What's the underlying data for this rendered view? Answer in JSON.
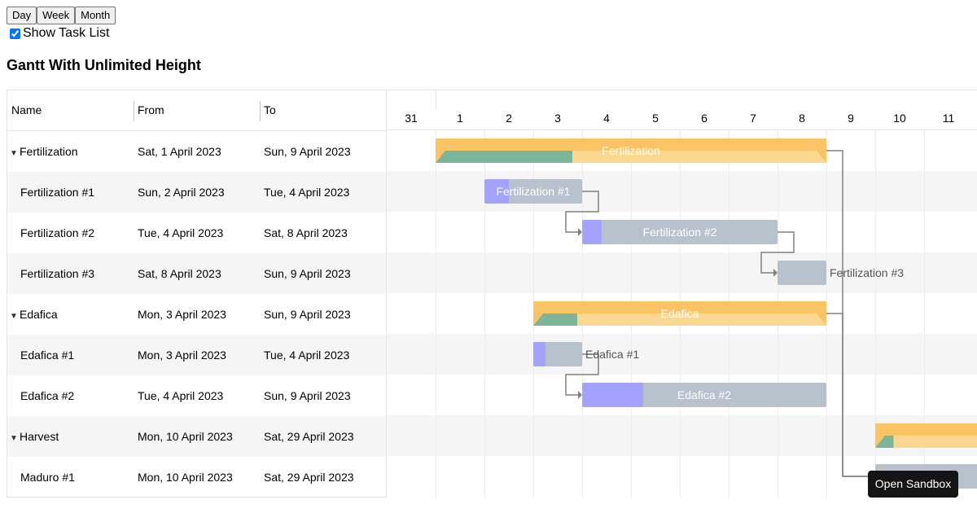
{
  "view_modes": [
    "Day",
    "Week",
    "Month"
  ],
  "show_task_list": {
    "label": "Show Task List",
    "checked": true
  },
  "title": "Gantt With Unlimited Height",
  "columns": {
    "name": "Name",
    "from": "From",
    "to": "To"
  },
  "dates": [
    "31",
    "1",
    "2",
    "3",
    "4",
    "5",
    "6",
    "7",
    "8",
    "9",
    "10",
    "11"
  ],
  "tasks": [
    {
      "name": "Fertilization",
      "from": "Sat, 1 April 2023",
      "to": "Sun, 9 April 2023",
      "type": "project",
      "expanded": true,
      "start_day": 1,
      "end_day": 9,
      "progress": 0.35,
      "bar_label": "Fertilization"
    },
    {
      "name": "Fertilization #1",
      "from": "Sun, 2 April 2023",
      "to": "Tue, 4 April 2023",
      "type": "task",
      "start_day": 2,
      "end_day": 4,
      "progress": 0.25,
      "bar_label": "Fertilization #1"
    },
    {
      "name": "Fertilization #2",
      "from": "Tue, 4 April 2023",
      "to": "Sat, 8 April 2023",
      "type": "task",
      "start_day": 4,
      "end_day": 8,
      "progress": 0.1,
      "bar_label": "Fertilization #2"
    },
    {
      "name": "Fertilization #3",
      "from": "Sat, 8 April 2023",
      "to": "Sun, 9 April 2023",
      "type": "task",
      "start_day": 8,
      "end_day": 9,
      "progress": 0,
      "bar_label": "Fertilization #3"
    },
    {
      "name": "Edafica",
      "from": "Mon, 3 April 2023",
      "to": "Sun, 9 April 2023",
      "type": "project",
      "expanded": true,
      "start_day": 3,
      "end_day": 9,
      "progress": 0.15,
      "bar_label": "Edafica"
    },
    {
      "name": "Edafica #1",
      "from": "Mon, 3 April 2023",
      "to": "Tue, 4 April 2023",
      "type": "task",
      "start_day": 3,
      "end_day": 4,
      "progress": 0.25,
      "bar_label": "Edafica #1"
    },
    {
      "name": "Edafica #2",
      "from": "Tue, 4 April 2023",
      "to": "Sun, 9 April 2023",
      "type": "task",
      "start_day": 4,
      "end_day": 9,
      "progress": 0.25,
      "bar_label": "Edafica #2"
    },
    {
      "name": "Harvest",
      "from": "Mon, 10 April 2023",
      "to": "Sat, 29 April 2023",
      "type": "project",
      "expanded": true,
      "start_day": 10,
      "end_day": 29,
      "progress": 0.1,
      "bar_label": ""
    },
    {
      "name": "Maduro #1",
      "from": "Mon, 10 April 2023",
      "to": "Sat, 29 April 2023",
      "type": "task",
      "start_day": 10,
      "end_day": 29,
      "progress": 0,
      "bar_label": ""
    }
  ],
  "dependencies": [
    {
      "from": 1,
      "to": 2
    },
    {
      "from": 2,
      "to": 3
    },
    {
      "from": 5,
      "to": 6
    },
    {
      "from": 0,
      "to": 8
    },
    {
      "from": 4,
      "to": 8
    }
  ],
  "colors": {
    "project_bar": "#fac465",
    "project_bar_bg": "#fbd891",
    "project_progress": "#7db59a",
    "task_bar": "#b8c2cc",
    "task_progress": "#a3a3ff",
    "grid_line": "#ebeff2",
    "row_alt": "#f5f5f5",
    "arrow": "#808080"
  },
  "sandbox_label": "Open Sandbox"
}
